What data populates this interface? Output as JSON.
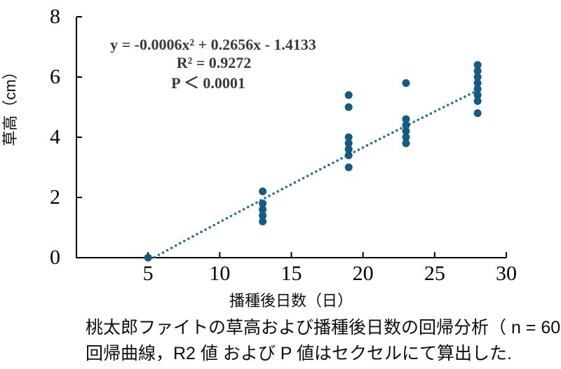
{
  "chart_data": {
    "type": "scatter",
    "title": "",
    "xlabel": "播種後日数（日）",
    "ylabel": "草高（cm）",
    "xlim": [
      0,
      30
    ],
    "ylim": [
      0,
      8
    ],
    "x_ticks": [
      5,
      10,
      15,
      20,
      25,
      30
    ],
    "y_ticks": [
      0,
      2,
      4,
      6,
      8
    ],
    "grid": false,
    "legend": "none",
    "marker_color": "#155a80",
    "trendline_color": "#27719e",
    "series": [
      {
        "name": "草高",
        "points": [
          [
            5,
            0
          ],
          [
            13,
            1.2
          ],
          [
            13,
            1.4
          ],
          [
            13,
            1.6
          ],
          [
            13,
            1.8
          ],
          [
            13,
            2.2
          ],
          [
            19,
            3.0
          ],
          [
            19,
            3.4
          ],
          [
            19,
            3.6
          ],
          [
            19,
            3.8
          ],
          [
            19,
            4.0
          ],
          [
            19,
            5.0
          ],
          [
            19,
            5.4
          ],
          [
            23,
            3.8
          ],
          [
            23,
            4.0
          ],
          [
            23,
            4.2
          ],
          [
            23,
            4.4
          ],
          [
            23,
            4.6
          ],
          [
            23,
            5.8
          ],
          [
            28,
            4.8
          ],
          [
            28,
            5.2
          ],
          [
            28,
            5.4
          ],
          [
            28,
            5.6
          ],
          [
            28,
            5.8
          ],
          [
            28,
            6.0
          ],
          [
            28,
            6.2
          ],
          [
            28,
            6.4
          ]
        ]
      }
    ],
    "trendline": {
      "style": "dotted",
      "a": -0.0006,
      "b": 0.2656,
      "c": -1.4133,
      "x_start": 5.45,
      "x_end": 28
    },
    "annotation": {
      "equation": "y = -0.0006x² + 0.2656x - 1.4133",
      "r_squared": "R² = 0.9272",
      "p_value": "P ＜ 0.0001"
    }
  },
  "caption": {
    "line1": "桃太郎ファイトの草高および播種後日数の回帰分析（ n = 60 ）",
    "line2": "回帰曲線，R2 値 および P 値はセクセルにて算出した."
  }
}
